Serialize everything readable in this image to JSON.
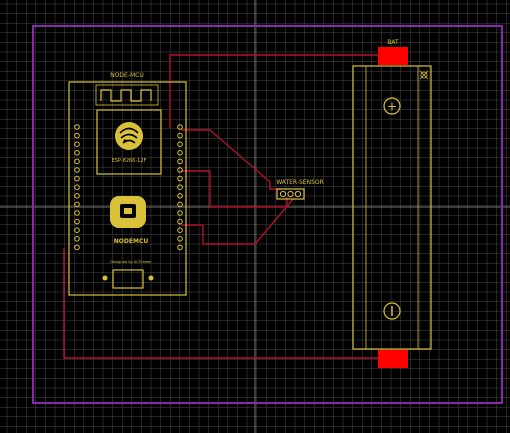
{
  "colors": {
    "background": "#000000",
    "grid": "#4a4a4a",
    "board_outline": "#8a2aa8",
    "silkscreen": "#d9c23a",
    "trace": "#b2122a",
    "battery_pad": "#ff0000"
  },
  "labels": {
    "mcu_title": "NODE-MCU",
    "chip_text": "ESP-8266-12F",
    "brand_text": "NODEMCU",
    "designer_text": "Designed by Ai-Thinker",
    "sensor_label": "WATER-SENSOR",
    "battery_label": "BAT",
    "plus_symbol": "+",
    "minus_symbol": "−"
  },
  "icons": {
    "esp_logo": "esp-logo-icon",
    "nodemcu_logo": "nodemcu-logo-icon",
    "usb_port": "usb-port-icon"
  }
}
